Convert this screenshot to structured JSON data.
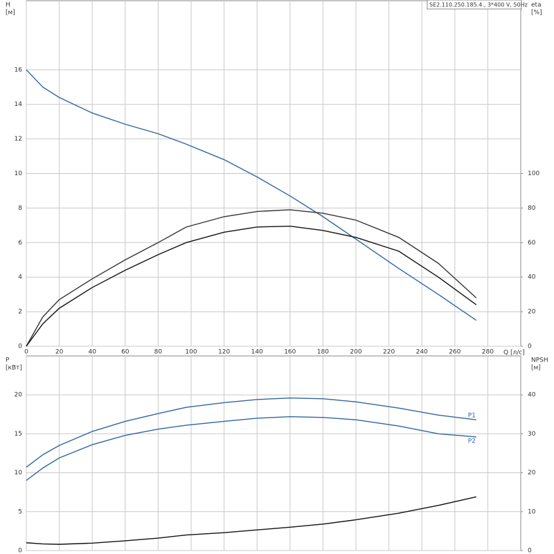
{
  "chart_data": [
    {
      "type": "line",
      "title": "SE2.110.250.185.4., 3*400 V, 50Hz",
      "ylabel": "H",
      "yunit": "[м]",
      "y2label": "eta",
      "y2unit": "[%]",
      "xlabel": "Q [л/с]",
      "x": [
        0,
        10,
        20,
        40,
        60,
        80,
        97,
        120,
        140,
        160,
        180,
        200,
        226,
        250,
        273
      ],
      "xlim": [
        0,
        300
      ],
      "xticks": [
        0,
        20,
        40,
        60,
        80,
        100,
        120,
        140,
        160,
        180,
        200,
        220,
        240,
        260,
        280
      ],
      "ylim": [
        0,
        20
      ],
      "yticks": [
        0,
        2,
        4,
        6,
        8,
        10,
        12,
        14,
        16
      ],
      "y2lim": [
        0,
        200
      ],
      "y2ticks": [
        0,
        20,
        40,
        60,
        80,
        100
      ],
      "grid": true,
      "series": [
        {
          "color": "#2f65a0",
          "values": [
            16,
            15,
            14.4,
            13.5,
            12.85,
            12.3,
            11.7,
            10.8,
            9.8,
            8.7,
            7.5,
            6.2,
            4.5,
            3.0,
            1.5
          ]
        },
        {
          "color": "#333333",
          "axis": "y2",
          "values": [
            0,
            17,
            27,
            39,
            50,
            60,
            69,
            75,
            78,
            79,
            77,
            73,
            63,
            48,
            28
          ]
        },
        {
          "color": "#111111",
          "axis": "y2",
          "values": [
            0,
            13,
            22,
            34,
            44,
            53,
            60,
            66,
            69,
            69.5,
            67,
            63,
            55,
            40,
            24
          ]
        }
      ]
    },
    {
      "type": "line",
      "ylabel": "P",
      "yunit": "[кВт]",
      "y2label": "NPSH",
      "y2unit": "[м]",
      "x": [
        0,
        10,
        20,
        40,
        60,
        80,
        97,
        120,
        140,
        160,
        180,
        200,
        226,
        250,
        273
      ],
      "xlim": [
        0,
        300
      ],
      "xticks": [
        0,
        20,
        40,
        60,
        80,
        100,
        120,
        140,
        160,
        180,
        200,
        220,
        240,
        260,
        280
      ],
      "ylim": [
        0,
        25
      ],
      "yticks": [
        0,
        5,
        10,
        15,
        20
      ],
      "y2lim": [
        0,
        50
      ],
      "y2ticks": [
        0,
        10,
        20,
        30,
        40
      ],
      "grid": true,
      "series": [
        {
          "name": "P1",
          "color": "#2f65a0",
          "values": [
            10.7,
            12.3,
            13.5,
            15.3,
            16.6,
            17.6,
            18.4,
            19.0,
            19.4,
            19.6,
            19.5,
            19.1,
            18.3,
            17.4,
            16.8
          ]
        },
        {
          "name": "P2",
          "color": "#2f65a0",
          "values": [
            9.0,
            10.6,
            11.9,
            13.6,
            14.8,
            15.6,
            16.1,
            16.6,
            17.0,
            17.2,
            17.1,
            16.8,
            16.0,
            15.0,
            14.6
          ]
        },
        {
          "color": "#111111",
          "axis": "y2",
          "values": [
            2.0,
            1.7,
            1.6,
            1.9,
            2.5,
            3.2,
            4.0,
            4.6,
            5.3,
            6.0,
            6.8,
            7.9,
            9.6,
            11.6,
            13.8
          ]
        }
      ]
    }
  ]
}
